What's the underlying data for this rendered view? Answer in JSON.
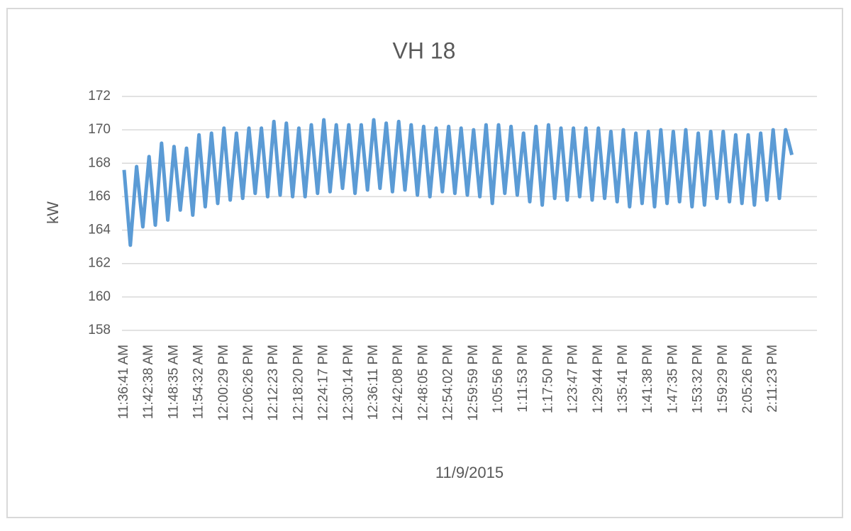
{
  "chart_data": {
    "type": "line",
    "title": "VH 18",
    "y_label": "kW",
    "x_label": "11/9/2015",
    "color": "#5b9bd5",
    "grid": true,
    "ylim": [
      158,
      172
    ],
    "yticks": [
      158,
      160,
      162,
      164,
      166,
      168,
      170,
      172
    ],
    "categories": [
      "11:36:41 AM",
      null,
      null,
      null,
      "11:42:38 AM",
      null,
      null,
      null,
      "11:48:35 AM",
      null,
      null,
      null,
      "11:54:32 AM",
      null,
      null,
      null,
      "12:00:29 PM",
      null,
      null,
      null,
      "12:06:26 PM",
      null,
      null,
      null,
      "12:12:23 PM",
      null,
      null,
      null,
      "12:18:20 PM",
      null,
      null,
      null,
      "12:24:17 PM",
      null,
      null,
      null,
      "12:30:14 PM",
      null,
      null,
      null,
      "12:36:11 PM",
      null,
      null,
      null,
      "12:42:08 PM",
      null,
      null,
      null,
      "12:48:05 PM",
      null,
      null,
      null,
      "12:54:02 PM",
      null,
      null,
      null,
      "12:59:59 PM",
      null,
      null,
      null,
      "1:05:56 PM",
      null,
      null,
      null,
      "1:11:53 PM",
      null,
      null,
      null,
      "1:17:50 PM",
      null,
      null,
      null,
      "1:23:47 PM",
      null,
      null,
      null,
      "1:29:44 PM",
      null,
      null,
      null,
      "1:35:41 PM",
      null,
      null,
      null,
      "1:41:38 PM",
      null,
      null,
      null,
      "1:47:35 PM",
      null,
      null,
      null,
      "1:53:32 PM",
      null,
      null,
      null,
      "1:59:29 PM",
      null,
      null,
      null,
      "2:05:26 PM",
      null,
      null,
      null,
      "2:11:23 PM",
      null,
      null,
      null
    ],
    "values": [
      167.6,
      163.1,
      167.8,
      164.2,
      168.4,
      164.3,
      169.2,
      164.6,
      169.0,
      165.2,
      168.9,
      164.9,
      169.7,
      165.4,
      169.8,
      165.6,
      170.1,
      165.8,
      169.8,
      165.9,
      170.1,
      166.2,
      170.1,
      166.0,
      170.5,
      166.1,
      170.4,
      166.0,
      170.1,
      166.0,
      170.3,
      166.2,
      170.6,
      166.3,
      170.3,
      166.5,
      170.3,
      166.2,
      170.3,
      166.4,
      170.6,
      166.5,
      170.4,
      166.3,
      170.5,
      166.4,
      170.3,
      166.1,
      170.2,
      166.0,
      170.1,
      166.3,
      170.2,
      166.2,
      170.1,
      166.1,
      170.0,
      166.0,
      170.3,
      165.6,
      170.3,
      166.2,
      170.2,
      166.1,
      169.8,
      165.7,
      170.2,
      165.5,
      170.3,
      165.9,
      170.1,
      165.8,
      170.1,
      166.0,
      170.1,
      165.8,
      170.1,
      165.9,
      169.9,
      165.7,
      170.0,
      165.4,
      169.8,
      165.6,
      169.9,
      165.4,
      170.0,
      165.6,
      169.9,
      165.7,
      170.0,
      165.4,
      169.8,
      165.5,
      169.9,
      165.9,
      169.9,
      165.7,
      169.7,
      165.6,
      169.7,
      165.5,
      169.8,
      165.8,
      170.0,
      165.9,
      170.0,
      168.5
    ]
  }
}
